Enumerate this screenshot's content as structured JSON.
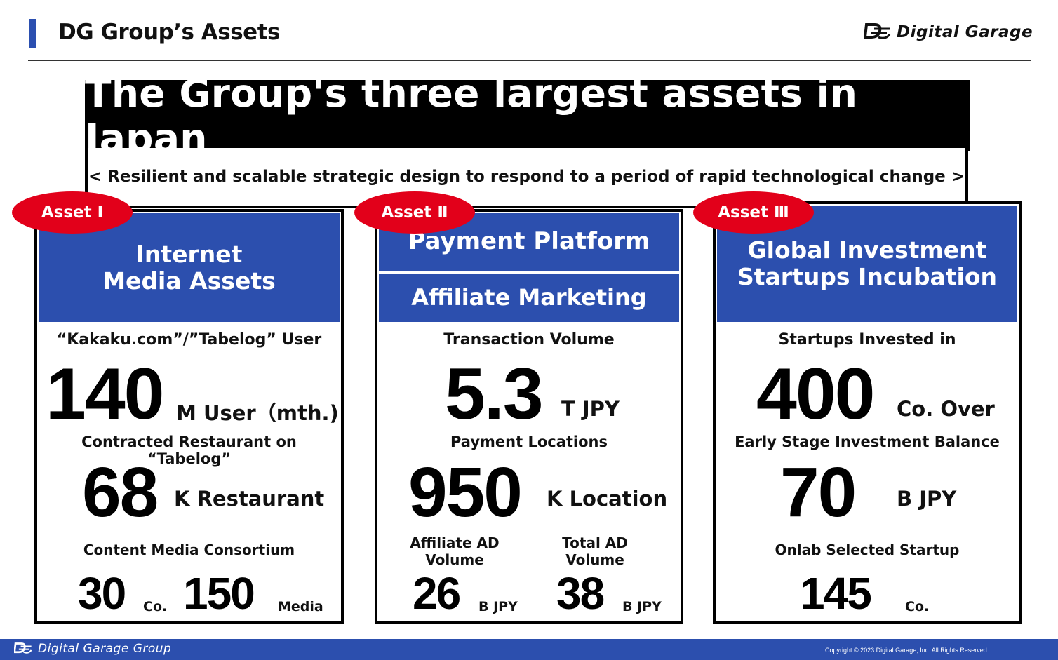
{
  "header": {
    "title": "DG Group’s Assets",
    "logo_text": "Digital Garage",
    "accent_color": "#2b4fb0"
  },
  "banner": {
    "title": "The Group's three largest assets in Japan",
    "subtitle": "< Resilient and scalable strategic design to respond to a period of rapid technological change >"
  },
  "assets": [
    {
      "badge": "Asset Ⅰ",
      "heading_line1": "Internet",
      "heading_line2": "Media Assets",
      "metric1_label": "“Kakaku.com”/”Tabelog” User",
      "metric1_value": "140",
      "metric1_unit": "M User（mth.)",
      "metric2_label": "Contracted Restaurant on “Tabelog”",
      "metric2_value": "68",
      "metric2_unit": "K Restaurant",
      "bottom_label": "Content Media Consortium",
      "bottom_value_a": "30",
      "bottom_unit_a": "Co.",
      "bottom_value_b": "150",
      "bottom_unit_b": "Media"
    },
    {
      "badge": "Asset Ⅱ",
      "heading_line1": "Payment Platform",
      "heading_line2": "Affiliate Marketing",
      "metric1_label": "Transaction Volume",
      "metric1_value": "5.3",
      "metric1_unit": "T JPY",
      "metric2_label": "Payment Locations",
      "metric2_value": "950",
      "metric2_unit": "K Location",
      "bottom_label_a": "Affiliate AD Volume",
      "bottom_value_a": "26",
      "bottom_unit_a": "B JPY",
      "bottom_label_b": "Total AD Volume",
      "bottom_value_b": "38",
      "bottom_unit_b": "B JPY"
    },
    {
      "badge": "Asset Ⅲ",
      "heading_line1": "Global Investment",
      "heading_line2": "Startups Incubation",
      "metric1_label": "Startups Invested in",
      "metric1_value": "400",
      "metric1_unit": "Co. Over",
      "metric2_label": "Early Stage Investment Balance",
      "metric2_value": "70",
      "metric2_unit": "B JPY",
      "bottom_label": "Onlab Selected Startup",
      "bottom_value_a": "145",
      "bottom_unit_a": "Co."
    }
  ],
  "footer": {
    "logo_text": "Digital Garage Group",
    "copyright": "Copyright © 2023 Digital Garage, Inc. All Rights Reserved",
    "bar_color": "#2c4fae"
  },
  "badge_color": "#e2001a"
}
